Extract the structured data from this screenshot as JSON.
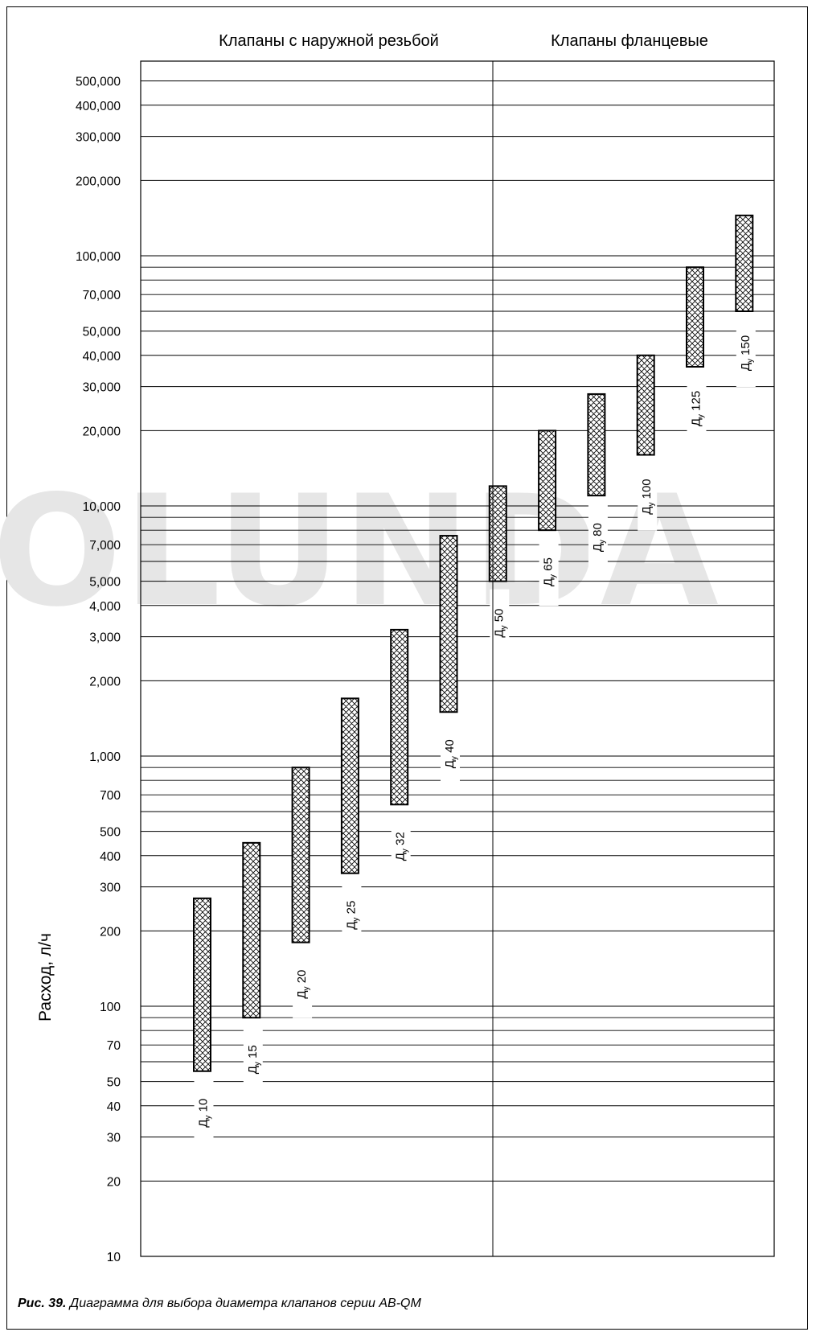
{
  "watermark_text": "OLUNDA",
  "caption": {
    "bold": "Рис. 39.",
    "text": " Диаграмма для выбора диаметра клапанов серии AB-QM"
  },
  "chart_data": {
    "type": "bar",
    "title": "",
    "ylabel": "Расход, л/ч",
    "yscale": "log",
    "ylim": [
      10,
      500000
    ],
    "grid": true,
    "sections": [
      {
        "label": "Клапаны с наружной резьбой"
      },
      {
        "label": "Клапаны фланцевые"
      }
    ],
    "ytick_labels": [
      "10",
      "20",
      "30",
      "40",
      "50",
      "70",
      "100",
      "200",
      "300",
      "400",
      "500",
      "700",
      "1,000",
      "2,000",
      "3,000",
      "4,000",
      "5,000",
      "7,000",
      "10,000",
      "20,000",
      "30,000",
      "40,000",
      "50,000",
      "70,000",
      "100,000",
      "200,000",
      "300,000",
      "400,000",
      "500,000"
    ],
    "ytick_values": [
      10,
      20,
      30,
      40,
      50,
      70,
      100,
      200,
      300,
      400,
      500,
      700,
      1000,
      2000,
      3000,
      4000,
      5000,
      7000,
      10000,
      20000,
      30000,
      40000,
      50000,
      70000,
      100000,
      200000,
      300000,
      400000,
      500000
    ],
    "bars": [
      {
        "label": "10",
        "min": 55,
        "max": 270
      },
      {
        "label": "15",
        "min": 90,
        "max": 450
      },
      {
        "label": "20",
        "min": 180,
        "max": 900
      },
      {
        "label": "25",
        "min": 340,
        "max": 1700
      },
      {
        "label": "32",
        "min": 640,
        "max": 3200
      },
      {
        "label": "40",
        "min": 1500,
        "max": 7600
      },
      {
        "label": "50",
        "min": 5000,
        "max": 12000
      },
      {
        "label": "65",
        "min": 8000,
        "max": 20000
      },
      {
        "label": "80",
        "min": 11000,
        "max": 28000
      },
      {
        "label": "100",
        "min": 16000,
        "max": 40000
      },
      {
        "label": "125",
        "min": 36000,
        "max": 90000
      },
      {
        "label": "150",
        "min": 60000,
        "max": 145000
      }
    ],
    "bar_label_prefix": "Д",
    "bar_label_sub": "у"
  }
}
